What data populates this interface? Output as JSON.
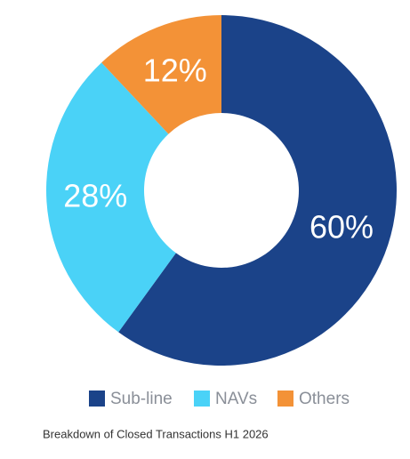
{
  "chart_data": {
    "type": "donut",
    "categories": [
      "Sub-line",
      "NAVs",
      "Others"
    ],
    "values": [
      60,
      28,
      12
    ],
    "value_labels": [
      "60%",
      "28%",
      "12%"
    ],
    "colors": [
      "#1b4389",
      "#4ad2f7",
      "#f39237"
    ],
    "caption": "Breakdown of Closed Transactions H1 2026"
  }
}
